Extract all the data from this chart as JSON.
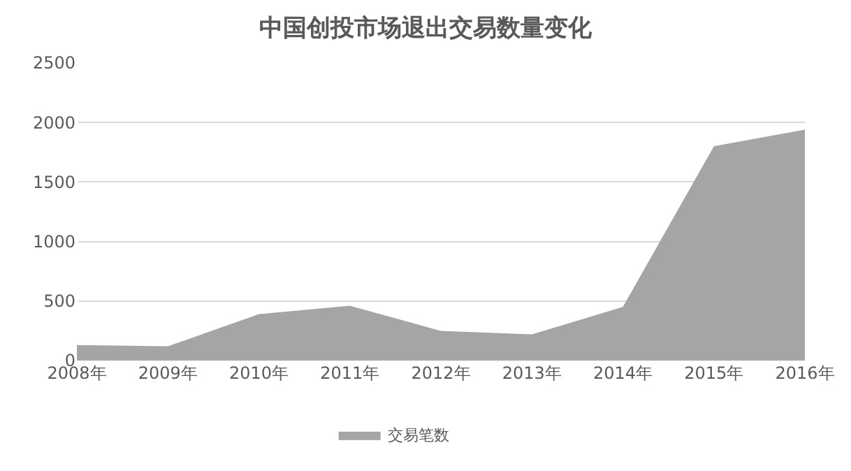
{
  "chart_data": {
    "type": "area",
    "title": "中国创投市场退出交易数量变化",
    "categories": [
      "2008年",
      "2009年",
      "2010年",
      "2011年",
      "2012年",
      "2013年",
      "2014年",
      "2015年",
      "2016年"
    ],
    "series": [
      {
        "name": "交易笔数",
        "color": "#a5a5a5",
        "values": [
          130,
          120,
          390,
          460,
          250,
          220,
          450,
          1800,
          1940
        ]
      }
    ],
    "ylim": [
      0,
      2500
    ],
    "yticks": [
      0,
      500,
      1000,
      1500,
      2000,
      2500
    ],
    "grid": "y",
    "legend": "bottom"
  }
}
